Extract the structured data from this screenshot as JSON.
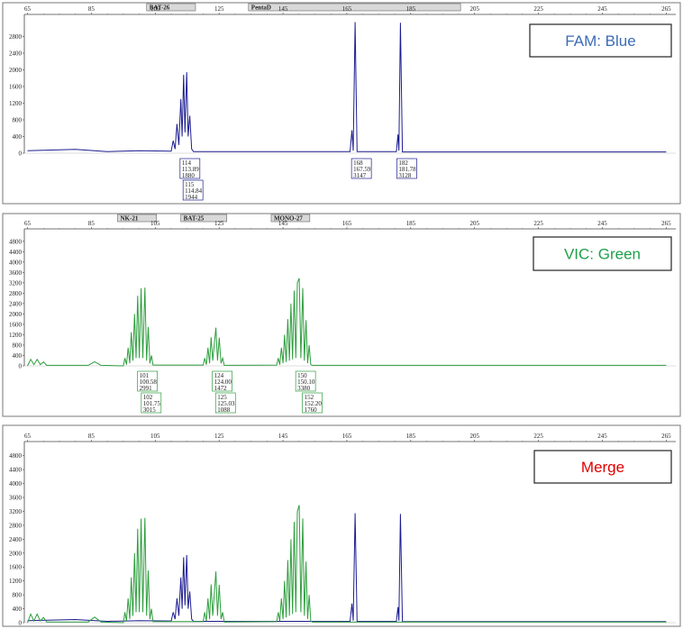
{
  "chart_data": [
    {
      "type": "line",
      "legend": "FAM: Blue",
      "legend_color": "#3b6cb5",
      "xlim": [
        64,
        268
      ],
      "xticks": [
        65,
        85,
        105,
        125,
        145,
        165,
        185,
        205,
        225,
        245,
        265
      ],
      "ylim": [
        0,
        3200
      ],
      "yticks": [
        0,
        400,
        800,
        1200,
        1600,
        2000,
        2400,
        2800
      ],
      "bins": [
        {
          "label": "BAT-26",
          "start": 102.3,
          "end": 117.6
        },
        {
          "label": "PentaD",
          "start": 134.2,
          "end": 200.6
        }
      ],
      "series": [
        {
          "color": "#1c1c8f",
          "x": [
            65,
            80,
            90,
            100,
            110,
            110.6,
            111.2,
            111.8,
            112.4,
            113.0,
            113.4,
            113.89,
            114.3,
            114.84,
            115.3,
            115.8,
            116.4,
            117,
            166,
            166.6,
            167.0,
            167.59,
            168.2,
            180.5,
            181.0,
            181.3,
            181.78,
            182.4,
            265
          ],
          "values": [
            60,
            90,
            40,
            60,
            50,
            300,
            100,
            700,
            200,
            1300,
            400,
            1880,
            500,
            1944,
            400,
            900,
            100,
            40,
            40,
            550,
            60,
            3147,
            40,
            40,
            450,
            60,
            3128,
            30,
            30
          ]
        }
      ],
      "peaks": [
        {
          "allele": 114,
          "size": 113.89,
          "height": 1880
        },
        {
          "allele": 115,
          "size": 114.84,
          "height": 1944
        },
        {
          "allele": 168,
          "size": 167.59,
          "height": 3147
        },
        {
          "allele": 182,
          "size": 181.78,
          "height": 3128
        }
      ]
    },
    {
      "type": "line",
      "legend": "VIC: Green",
      "legend_color": "#1fa04a",
      "xlim": [
        64,
        268
      ],
      "xticks": [
        65,
        85,
        105,
        125,
        145,
        165,
        185,
        205,
        225,
        245,
        265
      ],
      "ylim": [
        0,
        5000
      ],
      "yticks": [
        0,
        400,
        800,
        1200,
        1600,
        2000,
        2400,
        2800,
        3200,
        3600,
        4000,
        4400,
        4800
      ],
      "bins": [
        {
          "label": "NK-21",
          "start": 93.2,
          "end": 105.4
        },
        {
          "label": "BAT-25",
          "start": 113,
          "end": 127.4
        },
        {
          "label": "MONO-27",
          "start": 141.3,
          "end": 153.4
        }
      ],
      "series": [
        {
          "color": "#2e9e3e",
          "x": [
            65,
            66,
            67,
            68,
            69,
            70,
            71,
            84,
            86,
            88,
            95,
            95.5,
            96,
            96.5,
            97,
            97.5,
            98,
            98.5,
            99,
            99.5,
            100,
            100.58,
            101.1,
            101.75,
            102.3,
            102.8,
            103.3,
            103.8,
            104.3,
            120,
            120.5,
            121,
            121.5,
            122,
            122.5,
            123,
            124,
            124.5,
            125.03,
            125.6,
            126.1,
            126.6,
            143,
            143.5,
            144,
            144.5,
            145,
            145.5,
            146,
            146.5,
            147,
            147.5,
            148,
            148.5,
            149,
            149.5,
            150.1,
            150.6,
            151.2,
            151.7,
            152.2,
            152.7,
            153.2,
            153.7,
            154.2,
            265
          ],
          "values": [
            0,
            250,
            50,
            250,
            50,
            150,
            20,
            20,
            160,
            20,
            0,
            300,
            50,
            700,
            100,
            1300,
            200,
            2000,
            300,
            2700,
            300,
            2991,
            300,
            3015,
            200,
            1500,
            100,
            400,
            30,
            30,
            300,
            50,
            700,
            100,
            1100,
            200,
            1472,
            200,
            1088,
            100,
            300,
            20,
            30,
            300,
            50,
            700,
            100,
            1200,
            150,
            1800,
            200,
            2400,
            250,
            2900,
            300,
            3200,
            3380,
            300,
            3000,
            200,
            1760,
            100,
            800,
            50,
            20,
            20
          ]
        }
      ],
      "peaks": [
        {
          "allele": 101,
          "size": 100.58,
          "height": 2991
        },
        {
          "allele": 102,
          "size": 101.75,
          "height": 3015
        },
        {
          "allele": 124,
          "size": {
            "value": 124,
            "label": "124.00"
          },
          "height": 1472
        },
        {
          "allele": 125,
          "size": 125.03,
          "height": 1088
        },
        {
          "allele": 150,
          "size": {
            "value": 150.1,
            "label": "150.10"
          },
          "height": 3380
        },
        {
          "allele": 152,
          "size": {
            "value": 152.2,
            "label": "152.20"
          },
          "height": 1760
        }
      ]
    },
    {
      "type": "overlay",
      "legend": "Merge",
      "legend_color": "#e00000",
      "xlim": [
        64,
        268
      ],
      "xticks": [
        65,
        85,
        105,
        125,
        145,
        165,
        185,
        205,
        225,
        245,
        265
      ],
      "ylim": [
        0,
        5000
      ],
      "yticks": [
        0,
        400,
        800,
        1200,
        1600,
        2000,
        2400,
        2800,
        3200,
        3600,
        4000,
        4400,
        4800
      ]
    }
  ]
}
